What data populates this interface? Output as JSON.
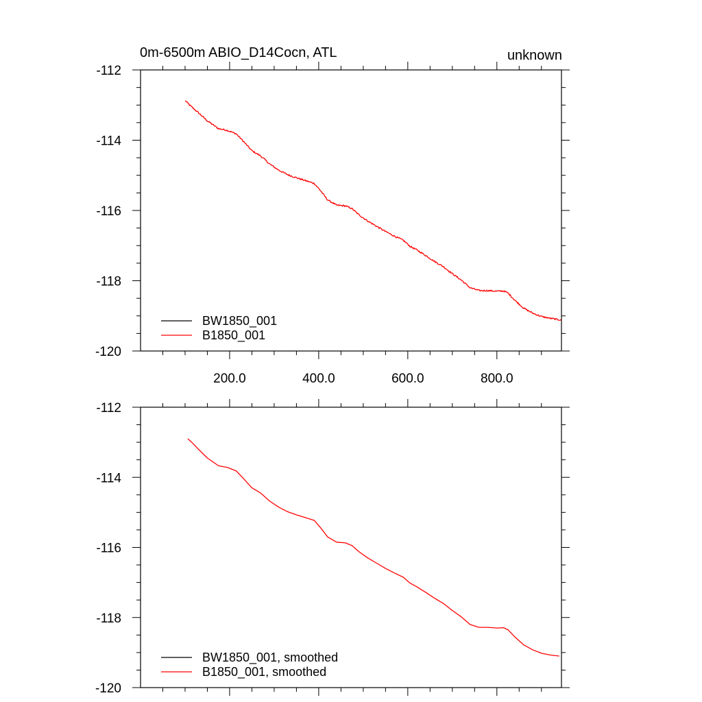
{
  "title_left": "0m-6500m ABIO_D14Cocn, ATL",
  "title_right": "unknown",
  "chart_data": [
    {
      "type": "line",
      "title": "0m-6500m ABIO_D14Cocn, ATL",
      "xlim": [
        0,
        945
      ],
      "ylim": [
        -120,
        -112
      ],
      "x_ticks": [
        200,
        400,
        600,
        800
      ],
      "x_tick_labels": [
        "200.0",
        "400.0",
        "600.0",
        "800.0"
      ],
      "y_ticks": [
        -112,
        -114,
        -116,
        -118,
        -120
      ],
      "y_tick_labels": [
        "-112",
        "-114",
        "-116",
        "-118",
        "-120"
      ],
      "grid": false,
      "legend_position": "bottom-left",
      "series": [
        {
          "name": "BW1850_001",
          "color": "#000000",
          "x": [],
          "values": []
        },
        {
          "name": "B1850_001",
          "color": "#ff0000",
          "noise": true,
          "x": [
            101,
            110,
            130,
            150,
            175,
            195,
            215,
            230,
            250,
            270,
            290,
            310,
            330,
            350,
            370,
            390,
            405,
            420,
            440,
            460,
            475,
            490,
            510,
            530,
            550,
            570,
            590,
            605,
            620,
            640,
            660,
            680,
            700,
            720,
            740,
            760,
            780,
            800,
            815,
            825,
            840,
            860,
            880,
            900,
            920,
            945
          ],
          "values": [
            -112.88,
            -113.0,
            -113.22,
            -113.45,
            -113.67,
            -113.72,
            -113.82,
            -114.02,
            -114.3,
            -114.45,
            -114.68,
            -114.85,
            -114.98,
            -115.07,
            -115.15,
            -115.23,
            -115.45,
            -115.7,
            -115.85,
            -115.87,
            -115.95,
            -116.12,
            -116.3,
            -116.45,
            -116.6,
            -116.73,
            -116.85,
            -117.02,
            -117.12,
            -117.28,
            -117.45,
            -117.6,
            -117.8,
            -117.98,
            -118.2,
            -118.28,
            -118.28,
            -118.3,
            -118.29,
            -118.35,
            -118.55,
            -118.78,
            -118.92,
            -119.02,
            -119.07,
            -119.12
          ]
        }
      ]
    },
    {
      "type": "line",
      "title": "",
      "xlim": [
        0,
        945
      ],
      "ylim": [
        -120,
        -112
      ],
      "x_ticks": [
        200,
        400,
        600,
        800
      ],
      "x_tick_labels": [],
      "y_ticks": [
        -112,
        -114,
        -116,
        -118,
        -120
      ],
      "y_tick_labels": [
        "-112",
        "-114",
        "-116",
        "-118",
        "-120"
      ],
      "grid": false,
      "legend_position": "bottom-left",
      "series": [
        {
          "name": "BW1850_001, smoothed",
          "color": "#000000",
          "x": [],
          "values": []
        },
        {
          "name": "B1850_001, smoothed",
          "color": "#ff0000",
          "noise": false,
          "x": [
            106,
            115,
            130,
            150,
            175,
            195,
            215,
            230,
            250,
            270,
            290,
            310,
            330,
            350,
            370,
            390,
            405,
            420,
            440,
            460,
            475,
            490,
            510,
            530,
            550,
            570,
            590,
            605,
            620,
            640,
            660,
            680,
            700,
            720,
            740,
            760,
            780,
            800,
            815,
            825,
            840,
            860,
            880,
            900,
            920,
            940
          ],
          "values": [
            -112.9,
            -113.0,
            -113.2,
            -113.45,
            -113.67,
            -113.72,
            -113.82,
            -114.02,
            -114.3,
            -114.45,
            -114.68,
            -114.85,
            -114.98,
            -115.07,
            -115.15,
            -115.23,
            -115.45,
            -115.7,
            -115.85,
            -115.87,
            -115.95,
            -116.12,
            -116.3,
            -116.45,
            -116.6,
            -116.73,
            -116.85,
            -117.02,
            -117.12,
            -117.28,
            -117.45,
            -117.6,
            -117.8,
            -117.98,
            -118.2,
            -118.28,
            -118.28,
            -118.3,
            -118.29,
            -118.35,
            -118.55,
            -118.78,
            -118.92,
            -119.02,
            -119.07,
            -119.1
          ]
        }
      ]
    }
  ]
}
